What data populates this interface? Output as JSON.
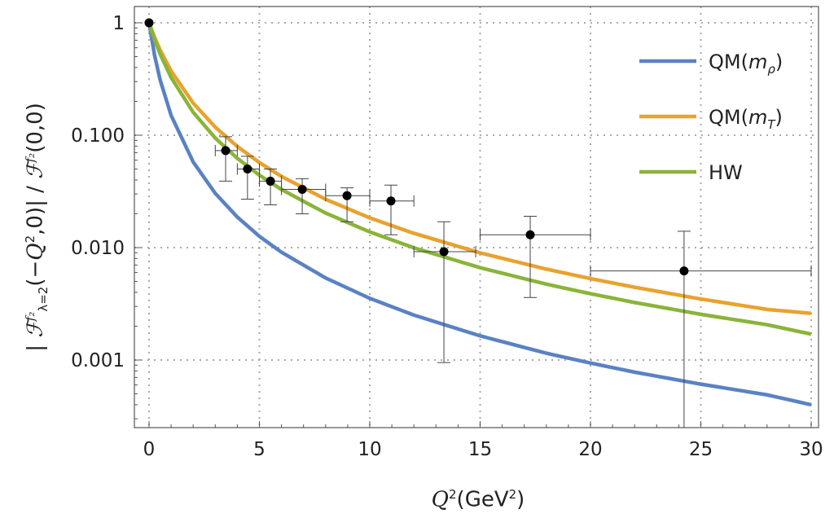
{
  "chart_data": {
    "type": "line",
    "title": "",
    "xlabel": {
      "var": "Q",
      "sup": "2",
      "unit": "(GeV",
      "unit_sup": "2",
      "close": ")"
    },
    "ylabel": {
      "pre": "| ",
      "F": "ℱ",
      "sup": "f₂",
      "sub": "λ=2",
      "arg": "(−",
      "Q": "Q",
      "Qsup": "2",
      "rest": ",0)| / ",
      "F2": "ℱ",
      "sup2": "f₂",
      "arg2": "(0,0)"
    },
    "xlim": [
      -0.7,
      30.8
    ],
    "ylim": [
      0.00025,
      1.4
    ],
    "yscale": "log",
    "grid": true,
    "legend_position": "top-right",
    "x_ticks": [
      0,
      5,
      10,
      15,
      20,
      25,
      30
    ],
    "x_tick_labels": [
      "0",
      "5",
      "10",
      "15",
      "20",
      "25",
      "30"
    ],
    "y_ticks": [
      1,
      0.1,
      0.01,
      0.001
    ],
    "y_tick_labels": [
      "1",
      "0.100",
      "0.010",
      "0.001"
    ],
    "x": [
      0,
      0.25,
      0.5,
      1,
      2,
      3,
      4,
      5,
      6,
      8,
      10,
      12,
      15,
      18,
      20,
      22,
      25,
      28,
      30
    ],
    "series": [
      {
        "name": "QM(m_ρ)",
        "label_main": "QM(",
        "label_it": "m",
        "label_sub": "ρ",
        "label_close": ")",
        "color": "#5a82c3",
        "values": [
          1,
          0.514,
          0.312,
          0.15,
          0.0578,
          0.0304,
          0.0187,
          0.0126,
          0.0091,
          0.00537,
          0.00354,
          0.00251,
          0.00164,
          0.00115,
          0.00094,
          0.00078,
          0.00061,
          0.00049,
          0.0004
        ]
      },
      {
        "name": "QM(m_T)",
        "label_main": "QM(",
        "label_it": "m",
        "label_sub": "T",
        "label_close": ")",
        "color": "#e8a22e",
        "values": [
          1,
          0.744,
          0.575,
          0.373,
          0.193,
          0.118,
          0.0794,
          0.0571,
          0.043,
          0.0269,
          0.0184,
          0.0134,
          0.00898,
          0.00644,
          0.0053,
          0.00444,
          0.00349,
          0.00282,
          0.0026
        ]
      },
      {
        "name": "HW",
        "label_main": "HW",
        "label_it": "",
        "label_sub": "",
        "label_close": "",
        "color": "#8ab43a",
        "values": [
          1,
          0.709,
          0.528,
          0.326,
          0.16,
          0.0943,
          0.0623,
          0.0441,
          0.0329,
          0.0203,
          0.0138,
          0.00996,
          0.00663,
          0.00473,
          0.00389,
          0.00325,
          0.00255,
          0.00206,
          0.0017
        ]
      }
    ],
    "data_points": [
      {
        "x": 0,
        "y": 1,
        "xerr": [
          0,
          0
        ],
        "yerr": [
          1,
          1
        ]
      },
      {
        "x": 3.47,
        "y": 0.073,
        "xerr": [
          3,
          4
        ],
        "yerr": [
          0.039,
          0.097
        ]
      },
      {
        "x": 4.46,
        "y": 0.05,
        "xerr": [
          4,
          5
        ],
        "yerr": [
          0.027,
          0.065
        ]
      },
      {
        "x": 5.5,
        "y": 0.039,
        "xerr": [
          5,
          6
        ],
        "yerr": [
          0.024,
          0.05
        ]
      },
      {
        "x": 6.94,
        "y": 0.033,
        "xerr": [
          6,
          8
        ],
        "yerr": [
          0.02,
          0.041
        ]
      },
      {
        "x": 8.97,
        "y": 0.029,
        "xerr": [
          8,
          10
        ],
        "yerr": [
          0.017,
          0.034
        ]
      },
      {
        "x": 10.96,
        "y": 0.026,
        "xerr": [
          10,
          12
        ],
        "yerr": [
          0.013,
          0.036
        ]
      },
      {
        "x": 13.36,
        "y": 0.0092,
        "xerr": [
          12,
          14.8
        ],
        "yerr": [
          0.00095,
          0.017
        ]
      },
      {
        "x": 17.27,
        "y": 0.013,
        "xerr": [
          15,
          20
        ],
        "yerr": [
          0.0036,
          0.019
        ]
      },
      {
        "x": 24.24,
        "y": 0.0062,
        "xerr": [
          20,
          30
        ],
        "yerr": [
          0.0002,
          0.014
        ]
      }
    ]
  }
}
